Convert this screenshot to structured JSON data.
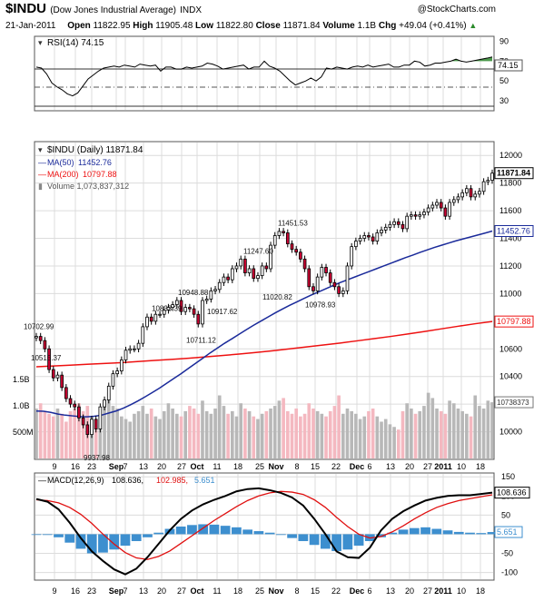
{
  "header": {
    "symbol": "$INDU",
    "name": "(Dow Jones Industrial Average)",
    "exchange": "INDX",
    "logo": "@StockCharts.com",
    "date": "21-Jan-2011",
    "open_label": "Open",
    "open": "11822.95",
    "high_label": "High",
    "high": "11905.48",
    "low_label": "Low",
    "low": "11822.80",
    "close_label": "Close",
    "close": "11871.84",
    "volume_label": "Volume",
    "volume": "1.1B",
    "chg_label": "Chg",
    "chg": "+49.04 (+0.41%)",
    "chg_arrow": "▲"
  },
  "legend": {
    "rsi": "RSI(14) 74.15",
    "price": "$INDU (Daily) 11871.84",
    "ma50_label": "MA(50)",
    "ma50": "11452.76",
    "ma200_label": "MA(200)",
    "ma200": "10797.88",
    "volume": "Volume 1,073,837,312",
    "macd_label": "MACD(12,26,9)",
    "macd": "108.636,",
    "signal": "102.985,",
    "hist": "5.651"
  },
  "colors": {
    "up": "#ffffff",
    "down": "#cc0033",
    "ma50": "#1a2a9a",
    "ma200": "#ee1111",
    "volume_up": "#b8b8b8",
    "volume_down": "#f4b8c0",
    "rsi_line": "#000000",
    "rsi_fill": "#4e9a4e",
    "macd_line": "#000000",
    "signal_line": "#e01010",
    "histogram": "#3d8fcf",
    "grid": "#dcdcdc"
  },
  "chart_data": [
    {
      "type": "line",
      "title": "RSI(14)",
      "value": 74.15,
      "ylim": [
        20,
        95
      ],
      "y_ticks": [
        90,
        70,
        50,
        30
      ],
      "reference_lines": [
        70,
        50,
        30
      ],
      "series": [
        {
          "values": [
            64,
            63,
            57,
            48,
            44,
            41,
            37,
            35,
            38,
            45,
            52,
            56,
            60,
            63,
            64,
            65,
            64,
            66,
            65,
            64,
            67,
            66,
            65,
            66,
            60,
            64,
            64,
            62,
            62,
            64,
            63,
            64,
            65,
            68,
            67,
            65,
            62,
            63,
            64,
            65,
            66,
            62,
            64,
            64,
            70,
            65,
            63,
            60,
            55,
            50,
            46,
            48,
            50,
            53,
            50,
            54,
            63,
            62,
            64,
            63,
            62,
            64,
            65,
            64,
            66,
            64,
            65,
            66,
            67,
            64,
            64,
            66,
            66,
            70,
            69,
            65,
            66,
            68,
            68,
            69,
            70,
            72,
            70,
            69,
            70,
            71,
            72,
            73,
            74.15
          ]
        }
      ]
    },
    {
      "type": "candlestick",
      "title": "$INDU (Daily) 11871.84",
      "x_tick_labels": [
        "9",
        "16",
        "23",
        "Sep",
        "7",
        "13",
        "20",
        "27",
        "Oct",
        "11",
        "18",
        "25",
        "Nov",
        "8",
        "15",
        "22",
        "Dec",
        "6",
        "13",
        "20",
        "27",
        "2011",
        "10",
        "18"
      ],
      "ylim": [
        9800,
        12100
      ],
      "y_ticks": [
        12000,
        11800,
        11600,
        11400,
        11200,
        11000,
        10800,
        10600,
        10400,
        10200,
        10000
      ],
      "annotations": [
        "10702.99",
        "10515.37",
        "9937.98",
        "10833.39",
        "10948.88",
        "10711.12",
        "10917.62",
        "11247.60",
        "11020.82",
        "11451.53",
        "10978.93"
      ],
      "last_close": 11871.84,
      "ma50_last": 11452.76,
      "ma200_last": 10797.88,
      "close": [
        10690,
        10660,
        10600,
        10450,
        10390,
        10410,
        10320,
        10240,
        10200,
        10180,
        10100,
        10050,
        9980,
        10090,
        10020,
        10180,
        10230,
        10330,
        10420,
        10440,
        10520,
        10590,
        10600,
        10600,
        10640,
        10760,
        10830,
        10800,
        10850,
        10850,
        10880,
        10900,
        10920,
        10950,
        10870,
        10900,
        10890,
        10850,
        10780,
        10950,
        10960,
        11020,
        11030,
        11080,
        11120,
        11100,
        11180,
        11200,
        11250,
        11150,
        11180,
        11110,
        11130,
        11200,
        11180,
        11350,
        11420,
        11450,
        11440,
        11360,
        11320,
        11300,
        11250,
        11180,
        11050,
        11020,
        11120,
        11190,
        11150,
        11080,
        11050,
        11000,
        11020,
        11200,
        11340,
        11380,
        11400,
        11420,
        11410,
        11380,
        11440,
        11460,
        11480,
        11500,
        11520,
        11500,
        11470,
        11560,
        11570,
        11560,
        11570,
        11590,
        11620,
        11640,
        11660,
        11620,
        11560,
        11660,
        11680,
        11700,
        11730,
        11760,
        11700,
        11720,
        11740,
        11810,
        11820,
        11871.84
      ],
      "ma50": [
        10150,
        10148,
        10140,
        10128,
        10120,
        10115,
        10110,
        10108,
        10112,
        10120,
        10135,
        10150,
        10170,
        10195,
        10222,
        10252,
        10283,
        10315,
        10350,
        10386,
        10420,
        10458,
        10495,
        10532,
        10570,
        10605,
        10640,
        10672,
        10705,
        10738,
        10770,
        10800,
        10830,
        10860,
        10888,
        10915,
        10940,
        10965,
        10990,
        11012,
        11035,
        11058,
        11080,
        11100,
        11120,
        11140,
        11160,
        11180,
        11200,
        11220,
        11240,
        11260,
        11278,
        11298,
        11316,
        11334,
        11350,
        11366,
        11382,
        11396,
        11410,
        11424,
        11438,
        11452.76
      ],
      "ma200": [
        10470,
        10476,
        10482,
        10488,
        10494,
        10500,
        10508,
        10516,
        10524,
        10532,
        10542,
        10552,
        10562,
        10574,
        10586,
        10600,
        10614,
        10628,
        10642,
        10658,
        10674,
        10690,
        10708,
        10726,
        10745,
        10764,
        10782,
        10797.88
      ]
    },
    {
      "type": "bar",
      "title": "Volume 1,073,837,312",
      "y_ticks": [
        "1.5B",
        "1.0B",
        "500M"
      ],
      "ylim": [
        0,
        1.9
      ],
      "last_volume": 1.07,
      "values": [
        0.95,
        1.05,
        0.9,
        0.85,
        0.8,
        0.95,
        0.85,
        0.7,
        0.9,
        0.95,
        1.05,
        0.9,
        1.0,
        0.8,
        0.75,
        0.85,
        1.1,
        1.25,
        1.0,
        0.95,
        0.8,
        0.75,
        0.7,
        0.85,
        0.9,
        1.0,
        0.85,
        0.95,
        0.8,
        0.75,
        0.9,
        1.05,
        0.95,
        0.85,
        0.8,
        0.9,
        1.0,
        0.95,
        0.85,
        1.1,
        0.9,
        0.85,
        0.95,
        1.2,
        1.0,
        0.85,
        0.9,
        0.8,
        1.05,
        0.95,
        0.9,
        0.8,
        0.75,
        0.85,
        0.9,
        0.95,
        1.0,
        1.1,
        1.15,
        0.9,
        0.85,
        0.95,
        0.8,
        0.85,
        1.05,
        0.95,
        0.9,
        0.85,
        0.8,
        0.9,
        1.0,
        1.2,
        0.85,
        0.95,
        0.9,
        0.85,
        0.75,
        0.8,
        0.9,
        0.95,
        0.8,
        0.7,
        0.75,
        0.65,
        0.6,
        0.55,
        0.9,
        1.05,
        0.95,
        0.85,
        0.9,
        1.0,
        1.25,
        1.15,
        0.95,
        0.9,
        0.85,
        1.1,
        1.05,
        0.95,
        0.9,
        0.85,
        0.8,
        1.2,
        1.0,
        0.95,
        1.1,
        1.07
      ]
    },
    {
      "type": "line",
      "title": "MACD(12,26,9)",
      "ylim": [
        -120,
        160
      ],
      "y_ticks": [
        150,
        100,
        50,
        0,
        -50,
        -100
      ],
      "macd_last": 108.636,
      "signal_last": 102.985,
      "hist_last": 5.651,
      "series": [
        {
          "name": "MACD",
          "values": [
            92,
            85,
            65,
            30,
            -10,
            -45,
            -70,
            -92,
            -105,
            -90,
            -60,
            -25,
            10,
            40,
            62,
            78,
            90,
            100,
            112,
            118,
            120,
            115,
            108,
            96,
            75,
            40,
            0,
            -45,
            -60,
            -62,
            -35,
            10,
            40,
            60,
            75,
            88,
            95,
            100,
            102,
            102,
            105,
            108.636
          ]
        },
        {
          "name": "Signal",
          "values": [
            90,
            88,
            82,
            70,
            52,
            28,
            0,
            -26,
            -48,
            -62,
            -66,
            -58,
            -44,
            -24,
            -4,
            16,
            36,
            54,
            72,
            88,
            100,
            108,
            112,
            110,
            104,
            90,
            70,
            44,
            20,
            0,
            -10,
            -6,
            6,
            22,
            40,
            56,
            70,
            80,
            88,
            93,
            98,
            102.985
          ]
        },
        {
          "name": "Histogram",
          "values": [
            0,
            -2,
            -8,
            -22,
            -38,
            -50,
            -48,
            -40,
            -30,
            -18,
            -8,
            4,
            14,
            20,
            24,
            26,
            25,
            22,
            18,
            12,
            8,
            4,
            -2,
            -10,
            -18,
            -28,
            -38,
            -44,
            -40,
            -30,
            -18,
            -8,
            4,
            12,
            16,
            18,
            14,
            10,
            6,
            4,
            3,
            5.651
          ]
        }
      ]
    }
  ]
}
